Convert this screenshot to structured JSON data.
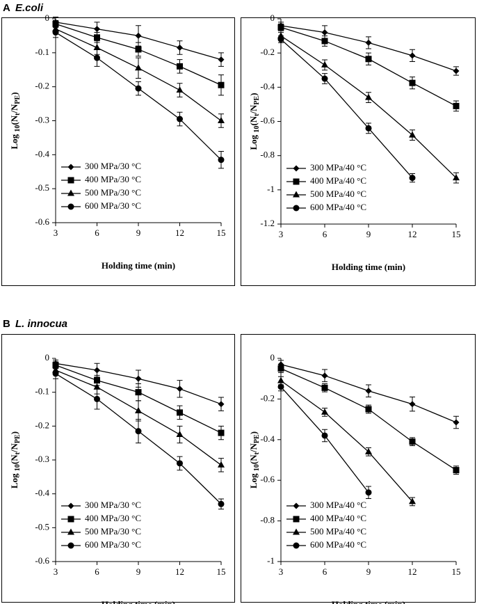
{
  "panels": [
    {
      "letter": "A",
      "name": "E.coli"
    },
    {
      "letter": "B",
      "name": "L. innocua"
    }
  ],
  "chart_data": [
    {
      "type": "line",
      "xlabel": "Holding time (min)",
      "ylabel": [
        {
          "text": "Log "
        },
        {
          "text": "10",
          "sub": true
        },
        {
          "text": "(N"
        },
        {
          "text": "t",
          "sub": true
        },
        {
          "text": "/N"
        },
        {
          "text": "PE",
          "sub": true
        },
        {
          "text": ")"
        }
      ],
      "x": [
        3,
        6,
        9,
        12,
        15
      ],
      "xlim": [
        3,
        15
      ],
      "xticks": [
        3,
        6,
        9,
        12,
        15
      ],
      "ylim": [
        -0.6,
        0
      ],
      "yticks": [
        0,
        -0.1,
        -0.2,
        -0.3,
        -0.4,
        -0.5,
        -0.6
      ],
      "legend": "lower left",
      "series": [
        {
          "name": "300 MPa/30 °C",
          "color": "#000000",
          "marker": "diamond",
          "values": [
            -0.01,
            -0.03,
            -0.05,
            -0.085,
            -0.12
          ],
          "errors": [
            0.015,
            0.02,
            0.03,
            0.02,
            0.02
          ]
        },
        {
          "name": "400 MPa/30 °C",
          "color": "#000000",
          "marker": "square",
          "values": [
            -0.015,
            -0.055,
            -0.09,
            -0.14,
            -0.195
          ],
          "errors": [
            0.01,
            0.015,
            0.02,
            0.02,
            0.03
          ]
        },
        {
          "name": "500 MPa/30 °C",
          "color": "#000000",
          "marker": "triangle",
          "values": [
            -0.03,
            -0.085,
            -0.145,
            -0.21,
            -0.3
          ],
          "errors": [
            0.01,
            0.02,
            0.03,
            0.02,
            0.02
          ]
        },
        {
          "name": "600 MPa/30 °C",
          "color": "#000000",
          "marker": "circle",
          "values": [
            -0.04,
            -0.115,
            -0.205,
            -0.295,
            -0.415
          ],
          "errors": [
            0.015,
            0.025,
            0.02,
            0.02,
            0.025
          ]
        }
      ]
    },
    {
      "type": "line",
      "xlabel": "Holding time (min)",
      "ylabel": [
        {
          "text": "Log "
        },
        {
          "text": "10",
          "sub": true
        },
        {
          "text": "(N"
        },
        {
          "text": "t",
          "sub": true
        },
        {
          "text": "/N"
        },
        {
          "text": "PE",
          "sub": true
        },
        {
          "text": ")"
        }
      ],
      "x": [
        3,
        6,
        9,
        12,
        15
      ],
      "xlim": [
        3,
        15
      ],
      "xticks": [
        3,
        6,
        9,
        12,
        15
      ],
      "ylim": [
        -1.2,
        0
      ],
      "yticks": [
        0,
        -0.2,
        -0.4,
        -0.6,
        -0.8,
        -1,
        -1.2
      ],
      "legend": "lower left",
      "series": [
        {
          "name": "300 MPa/40 °C",
          "color": "#000000",
          "marker": "diamond",
          "values": [
            -0.04,
            -0.08,
            -0.14,
            -0.215,
            -0.305
          ],
          "errors": [
            0.02,
            0.04,
            0.035,
            0.035,
            0.025
          ]
        },
        {
          "name": "400 MPa/40 °C",
          "color": "#000000",
          "marker": "square",
          "values": [
            -0.05,
            -0.13,
            -0.235,
            -0.375,
            -0.51
          ],
          "errors": [
            0.02,
            0.03,
            0.035,
            0.035,
            0.03
          ]
        },
        {
          "name": "500 MPa/40 °C",
          "color": "#000000",
          "marker": "triangle",
          "values": [
            -0.1,
            -0.27,
            -0.46,
            -0.68,
            -0.93
          ],
          "errors": [
            0.02,
            0.03,
            0.03,
            0.03,
            0.03
          ]
        },
        {
          "name": "600 MPa/40 °C",
          "color": "#000000",
          "marker": "circle",
          "values": [
            -0.12,
            -0.35,
            -0.64,
            -0.93,
            null
          ],
          "errors": [
            0.02,
            0.03,
            0.03,
            0.025,
            null
          ]
        }
      ]
    },
    {
      "type": "line",
      "xlabel": "Holding time (min)",
      "ylabel": [
        {
          "text": "Log "
        },
        {
          "text": "10",
          "sub": true
        },
        {
          "text": "(N"
        },
        {
          "text": "t",
          "sub": true
        },
        {
          "text": "/N"
        },
        {
          "text": "PE",
          "sub": true
        },
        {
          "text": ")"
        }
      ],
      "x": [
        3,
        6,
        9,
        12,
        15
      ],
      "xlim": [
        3,
        15
      ],
      "xticks": [
        3,
        6,
        9,
        12,
        15
      ],
      "ylim": [
        -0.6,
        0
      ],
      "yticks": [
        0,
        -0.1,
        -0.2,
        -0.3,
        -0.4,
        -0.5,
        -0.6
      ],
      "legend": "lower left",
      "series": [
        {
          "name": "300 MPa/30 °C",
          "color": "#000000",
          "marker": "diamond",
          "values": [
            -0.015,
            -0.035,
            -0.06,
            -0.09,
            -0.135
          ],
          "errors": [
            0.01,
            0.02,
            0.025,
            0.025,
            0.02
          ]
        },
        {
          "name": "400 MPa/30 °C",
          "color": "#000000",
          "marker": "square",
          "values": [
            -0.02,
            -0.065,
            -0.1,
            -0.16,
            -0.22
          ],
          "errors": [
            0.01,
            0.015,
            0.025,
            0.02,
            0.02
          ]
        },
        {
          "name": "500 MPa/30 °C",
          "color": "#000000",
          "marker": "triangle",
          "values": [
            -0.035,
            -0.085,
            -0.155,
            -0.225,
            -0.315
          ],
          "errors": [
            0.01,
            0.02,
            0.03,
            0.025,
            0.02
          ]
        },
        {
          "name": "600 MPa/30 °C",
          "color": "#000000",
          "marker": "circle",
          "values": [
            -0.045,
            -0.12,
            -0.215,
            -0.31,
            -0.43
          ],
          "errors": [
            0.015,
            0.03,
            0.035,
            0.02,
            0.015
          ]
        }
      ]
    },
    {
      "type": "line",
      "xlabel": "Holding time (min)",
      "ylabel": [
        {
          "text": "Log "
        },
        {
          "text": "10",
          "sub": true
        },
        {
          "text": "(N"
        },
        {
          "text": "t",
          "sub": true
        },
        {
          "text": "/N"
        },
        {
          "text": "PE",
          "sub": true
        },
        {
          "text": ")"
        }
      ],
      "x": [
        3,
        6,
        9,
        12,
        15
      ],
      "xlim": [
        3,
        15
      ],
      "xticks": [
        3,
        6,
        9,
        12,
        15
      ],
      "ylim": [
        -1,
        0
      ],
      "yticks": [
        0,
        -0.2,
        -0.4,
        -0.6,
        -0.8,
        -1
      ],
      "legend": "lower left",
      "series": [
        {
          "name": "300 MPa/40 °C",
          "color": "#000000",
          "marker": "diamond",
          "values": [
            -0.03,
            -0.085,
            -0.16,
            -0.225,
            -0.315
          ],
          "errors": [
            0.02,
            0.03,
            0.03,
            0.035,
            0.03
          ]
        },
        {
          "name": "400 MPa/40 °C",
          "color": "#000000",
          "marker": "square",
          "values": [
            -0.05,
            -0.145,
            -0.25,
            -0.41,
            -0.55
          ],
          "errors": [
            0.02,
            0.02,
            0.02,
            0.02,
            0.02
          ]
        },
        {
          "name": "500 MPa/40 °C",
          "color": "#000000",
          "marker": "triangle",
          "values": [
            -0.11,
            -0.265,
            -0.46,
            -0.705,
            null
          ],
          "errors": [
            0.02,
            0.02,
            0.02,
            0.02,
            null
          ]
        },
        {
          "name": "600 MPa/40 °C",
          "color": "#000000",
          "marker": "circle",
          "values": [
            -0.14,
            -0.38,
            -0.66,
            null,
            null
          ],
          "errors": [
            0.02,
            0.03,
            0.03,
            null,
            null
          ]
        }
      ]
    }
  ]
}
